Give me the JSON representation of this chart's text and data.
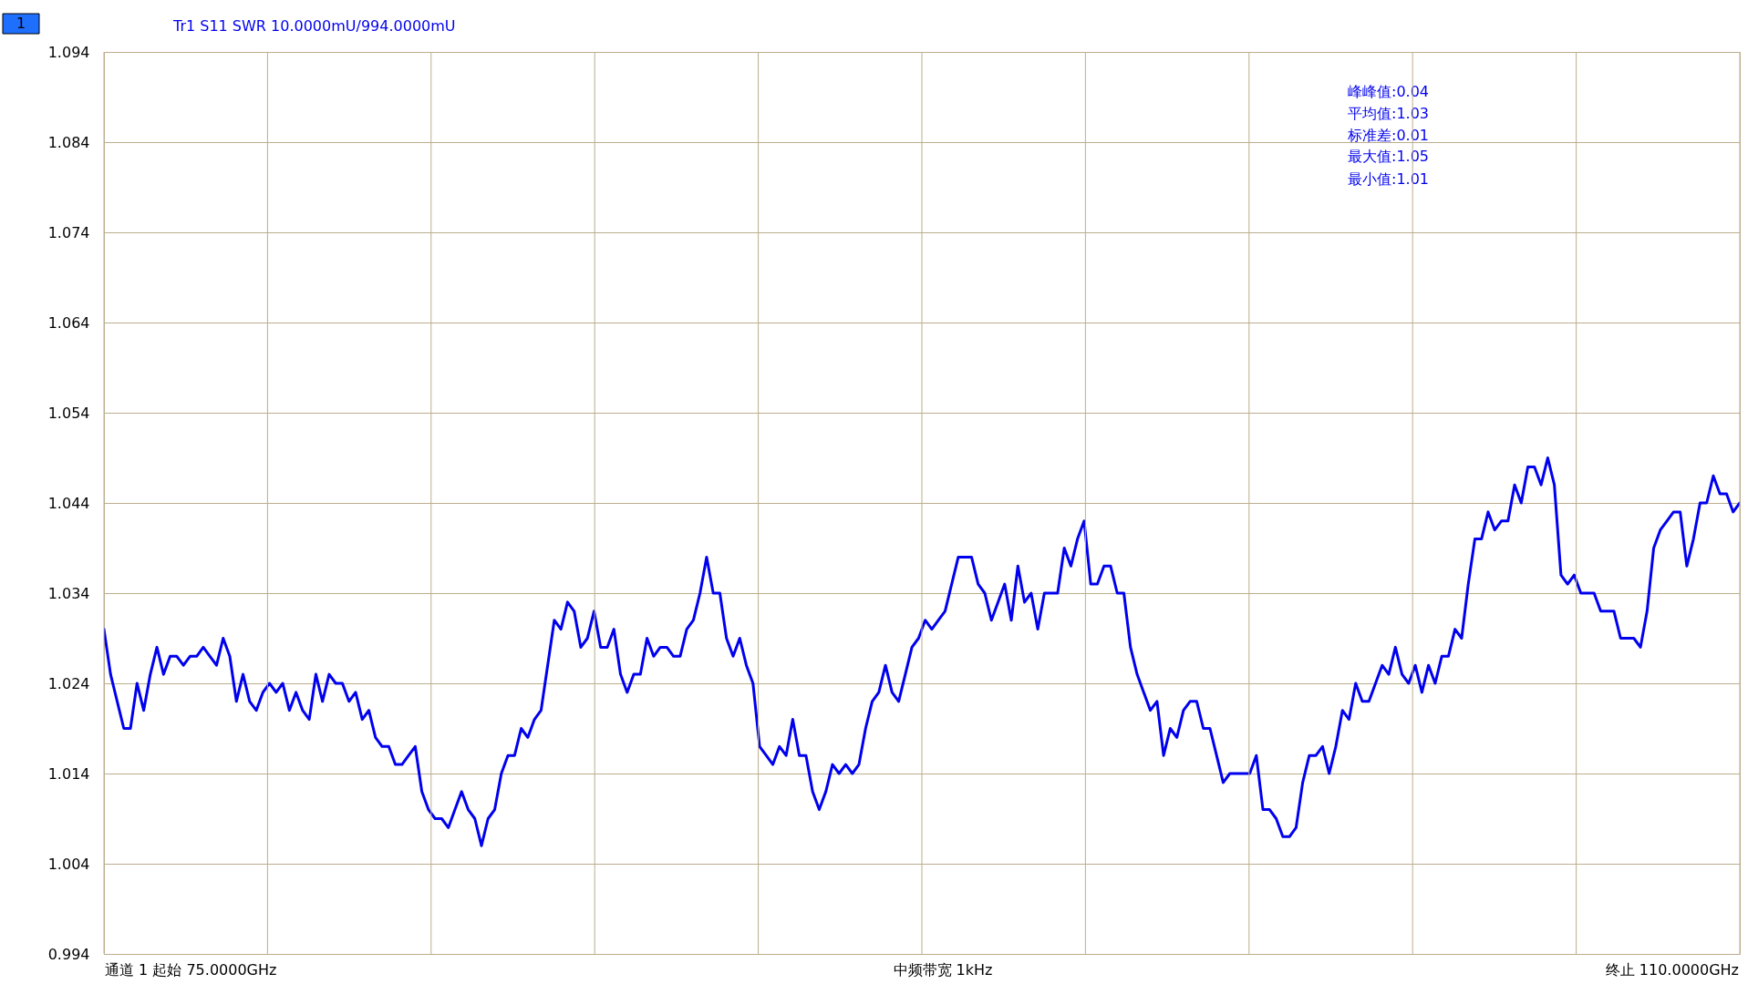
{
  "chart_data": {
    "type": "line",
    "title": "Tr1 S11 SWR 10.0000mU/994.0000mU",
    "categories": [
      null,
      null,
      null,
      null,
      null,
      null,
      null,
      null,
      null,
      null,
      null,
      null,
      null,
      null,
      null,
      null,
      null,
      null,
      null,
      null,
      null,
      null,
      null,
      null,
      null,
      null,
      null,
      null,
      null,
      null,
      null,
      null,
      null,
      null,
      null,
      null,
      null,
      null,
      null,
      null,
      null,
      null,
      null,
      null,
      null,
      null,
      null,
      null,
      null,
      null,
      null,
      null,
      null,
      null,
      null,
      null,
      null,
      null,
      null,
      null,
      null,
      null,
      null,
      null,
      null,
      null,
      null,
      null,
      null,
      null,
      null,
      null,
      null,
      null,
      null,
      null,
      null,
      null,
      null,
      null,
      null,
      null,
      null,
      null,
      null,
      null,
      null,
      null,
      null,
      null,
      null,
      null,
      null,
      null,
      null,
      null,
      null,
      null,
      null,
      null,
      null,
      null,
      null,
      null,
      null,
      null,
      null,
      null,
      null,
      null,
      null,
      null,
      null,
      null,
      null,
      null,
      null,
      null,
      null,
      null,
      null,
      null,
      null,
      null,
      null,
      null,
      null,
      null,
      null,
      null,
      null,
      null,
      null,
      null,
      null,
      null,
      null,
      null,
      null,
      null,
      null,
      null,
      null,
      null,
      null,
      null,
      null,
      null,
      null,
      null,
      null,
      null,
      null,
      null,
      null,
      null,
      null,
      null,
      null,
      null,
      null,
      null,
      null,
      null,
      null,
      null,
      null,
      null,
      null,
      null,
      null,
      null,
      null,
      null,
      null,
      null,
      null,
      null,
      null,
      null,
      null,
      null,
      null,
      null,
      null,
      null,
      null,
      null,
      null,
      null,
      null,
      null,
      null,
      null,
      null,
      null,
      null,
      null,
      null,
      null,
      null,
      null,
      null,
      null,
      null,
      null,
      null,
      null,
      null,
      null,
      null,
      null,
      null,
      null,
      null,
      null,
      null,
      null,
      null,
      null,
      null,
      null,
      null,
      null,
      null,
      null,
      null,
      null,
      null,
      null,
      null,
      null,
      null,
      null,
      null,
      null,
      null,
      null,
      null,
      null,
      null,
      null,
      null,
      null,
      null,
      null,
      null,
      null
    ],
    "series": [
      {
        "color": "#0000ee",
        "values": [
          1.03,
          1.025,
          1.022,
          1.019,
          1.019,
          1.024,
          1.021,
          1.025,
          1.028,
          1.025,
          1.027,
          1.027,
          1.026,
          1.027,
          1.027,
          1.028,
          1.027,
          1.026,
          1.029,
          1.027,
          1.022,
          1.025,
          1.022,
          1.021,
          1.023,
          1.024,
          1.023,
          1.024,
          1.021,
          1.023,
          1.021,
          1.02,
          1.025,
          1.022,
          1.025,
          1.024,
          1.024,
          1.022,
          1.023,
          1.02,
          1.021,
          1.018,
          1.017,
          1.017,
          1.015,
          1.015,
          1.016,
          1.017,
          1.012,
          1.01,
          1.009,
          1.009,
          1.008,
          1.01,
          1.012,
          1.01,
          1.009,
          1.006,
          1.009,
          1.01,
          1.014,
          1.016,
          1.016,
          1.019,
          1.018,
          1.02,
          1.021,
          1.026,
          1.031,
          1.03,
          1.033,
          1.032,
          1.028,
          1.029,
          1.032,
          1.028,
          1.028,
          1.03,
          1.025,
          1.023,
          1.025,
          1.025,
          1.029,
          1.027,
          1.028,
          1.028,
          1.027,
          1.027,
          1.03,
          1.031,
          1.034,
          1.038,
          1.034,
          1.034,
          1.029,
          1.027,
          1.029,
          1.026,
          1.024,
          1.017,
          1.016,
          1.015,
          1.017,
          1.016,
          1.02,
          1.016,
          1.016,
          1.012,
          1.01,
          1.012,
          1.015,
          1.014,
          1.015,
          1.014,
          1.015,
          1.019,
          1.022,
          1.023,
          1.026,
          1.023,
          1.022,
          1.025,
          1.028,
          1.029,
          1.031,
          1.03,
          1.031,
          1.032,
          1.035,
          1.038,
          1.038,
          1.038,
          1.035,
          1.034,
          1.031,
          1.033,
          1.035,
          1.031,
          1.037,
          1.033,
          1.034,
          1.03,
          1.034,
          1.034,
          1.034,
          1.039,
          1.037,
          1.04,
          1.042,
          1.035,
          1.035,
          1.037,
          1.037,
          1.034,
          1.034,
          1.028,
          1.025,
          1.023,
          1.021,
          1.022,
          1.016,
          1.019,
          1.018,
          1.021,
          1.022,
          1.022,
          1.019,
          1.019,
          1.016,
          1.013,
          1.014,
          1.014,
          1.014,
          1.014,
          1.016,
          1.01,
          1.01,
          1.009,
          1.007,
          1.007,
          1.008,
          1.013,
          1.016,
          1.016,
          1.017,
          1.014,
          1.017,
          1.021,
          1.02,
          1.024,
          1.022,
          1.022,
          1.024,
          1.026,
          1.025,
          1.028,
          1.025,
          1.024,
          1.026,
          1.023,
          1.026,
          1.024,
          1.027,
          1.027,
          1.03,
          1.029,
          1.035,
          1.04,
          1.04,
          1.043,
          1.041,
          1.042,
          1.042,
          1.046,
          1.044,
          1.048,
          1.048,
          1.046,
          1.049,
          1.046,
          1.036,
          1.035,
          1.036,
          1.034,
          1.034,
          1.034,
          1.032,
          1.032,
          1.032,
          1.029,
          1.029,
          1.029,
          1.028,
          1.032,
          1.039,
          1.041,
          1.042,
          1.043,
          1.043,
          1.037,
          1.04,
          1.044,
          1.044,
          1.047,
          1.045,
          1.045,
          1.043,
          1.044
        ]
      }
    ],
    "ylim": [
      0.994,
      1.094
    ],
    "yticks": [
      0.994,
      1.004,
      1.014,
      1.024,
      1.034,
      1.044,
      1.054,
      1.064,
      1.074,
      1.084,
      1.094
    ],
    "tick_labels": "y",
    "grid": true,
    "legend": false,
    "line_style": "solid",
    "annotations": [
      "1",
      "峰峰值:0.04",
      "平均值:1.03",
      "标准差:0.01",
      "最大值:1.05",
      "最小值:1.01",
      "通道 1 起始 75.0000GHz",
      "中频带宽 1kHz",
      "终止 110.0000GHz"
    ]
  }
}
